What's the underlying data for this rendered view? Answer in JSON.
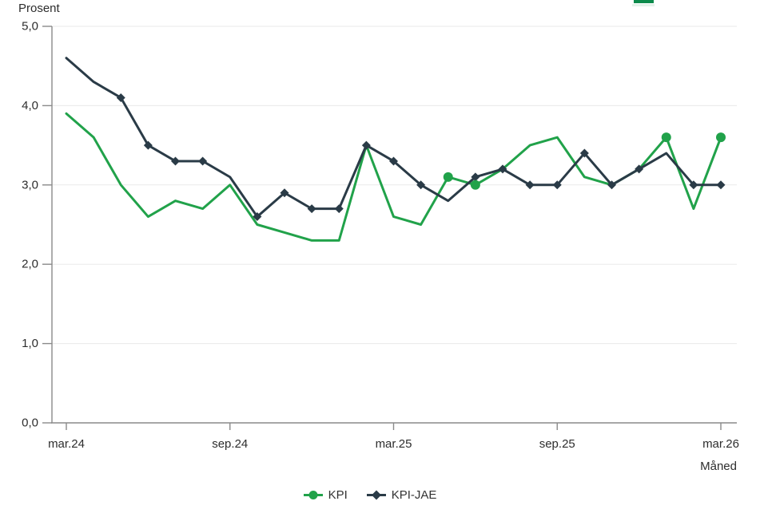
{
  "page": {
    "background": "#ffffff"
  },
  "clipped_top_element": {
    "color": "#0b8a4b",
    "shadow_color": "#e4f2ea"
  },
  "chart_data": {
    "type": "line",
    "title": "",
    "ylabel": "Prosent",
    "xlabel": "Måned",
    "ylim": [
      0.0,
      5.0
    ],
    "ytick_step": 1.0,
    "ytick_labels": [
      "0,0",
      "1,0",
      "2,0",
      "3,0",
      "4,0",
      "5,0"
    ],
    "grid": true,
    "legend_position": "bottom",
    "categories": [
      "mar.24",
      "apr.24",
      "mai.24",
      "jun.24",
      "jul.24",
      "aug.24",
      "sep.24",
      "okt.24",
      "nov.24",
      "des.24",
      "jan.25",
      "feb.25",
      "mar.25",
      "apr.25",
      "mai.25",
      "jun.25",
      "jul.25",
      "aug.25",
      "sep.25",
      "okt.25",
      "nov.25",
      "des.25",
      "jan.26",
      "feb.26",
      "mar.26"
    ],
    "xtick_labels": [
      "mar.24",
      "sep.24",
      "mar.25",
      "sep.25",
      "mar.26"
    ],
    "xtick_month_indices": [
      0,
      6,
      12,
      18,
      24
    ],
    "series": [
      {
        "name": "KPI",
        "color": "#21a24a",
        "marker": "circle",
        "marker_indices": [
          14,
          15,
          22,
          24
        ],
        "values": [
          3.9,
          3.6,
          3.0,
          2.6,
          2.8,
          2.7,
          3.0,
          2.5,
          2.4,
          2.3,
          2.3,
          3.5,
          2.6,
          2.5,
          3.1,
          3.0,
          3.2,
          3.5,
          3.6,
          3.1,
          3.0,
          3.2,
          3.6,
          2.7,
          3.6
        ]
      },
      {
        "name": "KPI-JAE",
        "color": "#2a3b47",
        "marker": "diamond",
        "marker_indices": [
          2,
          3,
          4,
          5,
          7,
          8,
          9,
          10,
          11,
          12,
          13,
          15,
          16,
          17,
          18,
          19,
          20,
          21,
          23,
          24
        ],
        "values": [
          4.6,
          4.3,
          4.1,
          3.5,
          3.3,
          3.3,
          3.1,
          2.6,
          2.9,
          2.7,
          2.7,
          3.5,
          3.3,
          3.0,
          2.8,
          3.1,
          3.2,
          3.0,
          3.0,
          3.4,
          3.0,
          3.2,
          3.4,
          3.0,
          3.0
        ]
      }
    ],
    "axis_color": "#8a8a8a",
    "grid_color": "#eaeaea",
    "text_color": "#2d2d2d"
  },
  "legend": {
    "items": [
      {
        "label": "KPI"
      },
      {
        "label": "KPI-JAE"
      }
    ]
  }
}
